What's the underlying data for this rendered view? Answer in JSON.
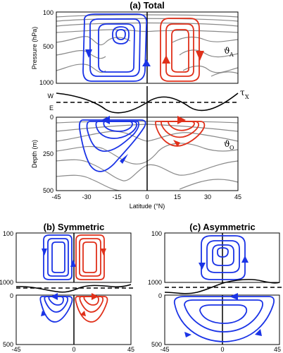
{
  "panel_a": {
    "title": "(a) Total",
    "atm_ylabel": "Pressure (hPa)",
    "atm_ticks": [
      "100",
      "500",
      "1000"
    ],
    "ocean_ylabel": "Depth (m)",
    "ocean_ticks": [
      "0",
      "250",
      "500"
    ],
    "xlabel": "Latitude (°N)",
    "xticks": [
      "-45",
      "-30",
      "-15",
      "0",
      "15",
      "30",
      "45"
    ],
    "wind_top": "W",
    "wind_bottom": "E",
    "tau_symbol": "τ",
    "tau_sub": "X",
    "atm_symbol": "ϑ",
    "atm_sub": "A",
    "ocean_symbol": "ϑ",
    "ocean_sub": "O"
  },
  "panel_b": {
    "title": "(b) Symmetric",
    "atm_ticks": [
      "100",
      "1000"
    ],
    "ocean_ticks": [
      "0",
      "500"
    ],
    "xticks": [
      "-45",
      "0",
      "45"
    ]
  },
  "panel_c": {
    "title": "(c) Asymmetric",
    "atm_ticks": [
      "100",
      "1000"
    ],
    "ocean_ticks": [
      "0",
      "500"
    ],
    "xticks": [
      "-45",
      "0",
      "45"
    ]
  },
  "colors": {
    "northward_cell": "#1a33e6",
    "southward_cell": "#e0301a",
    "isolines": "#8a8a8a",
    "wind_stress": "#000000"
  }
}
